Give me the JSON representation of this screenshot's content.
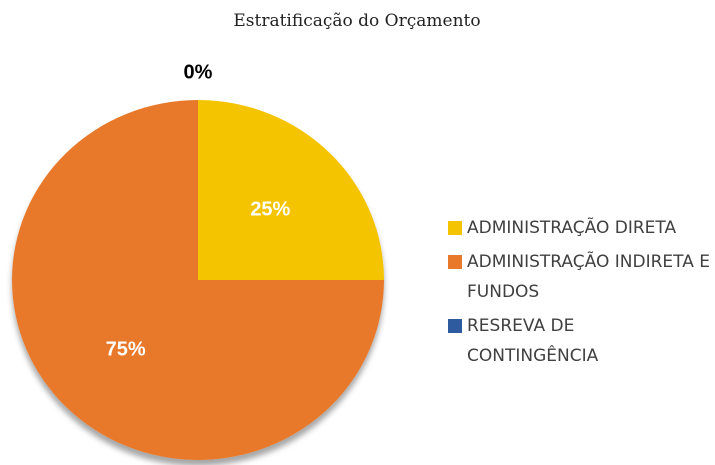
{
  "chart_data": {
    "type": "pie",
    "title": "Estratificação do Orçamento",
    "categories": [
      "ADMINISTRAÇÃO DIRETA",
      "ADMINISTRAÇÃO INDIRETA E FUNDOS",
      "RESREVA DE CONTINGÊNCIA"
    ],
    "values": [
      25,
      75,
      0
    ],
    "value_labels": [
      "25%",
      "75%",
      "0%"
    ],
    "colors": [
      "#f5c400",
      "#e8792a",
      "#2e5aa0"
    ],
    "legend": "right"
  }
}
